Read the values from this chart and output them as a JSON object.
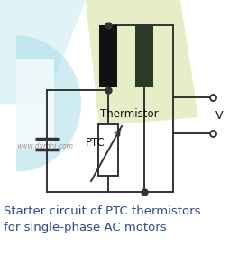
{
  "title_line1": "Starter circuit of PTC thermistors",
  "title_line2": "for single-phase AC motors",
  "title_fontsize": 9.5,
  "title_color": "#2d4a8a",
  "bg_color": "#ffffff",
  "watermark_text": "www.dxmhi.com",
  "line_color": "#333333",
  "line_width": 1.4,
  "coil1_color": "#111111",
  "coil2_color": "#2a3a25",
  "thermistor_label": "Thermistor",
  "ptc_label": "PTC",
  "label_color": "#111111",
  "label_fontsize": 8.5,
  "v_label": "V",
  "v_label_color": "#111111",
  "blue_logo_color": "#a8dde8",
  "green_logo_color": "#d0df90"
}
